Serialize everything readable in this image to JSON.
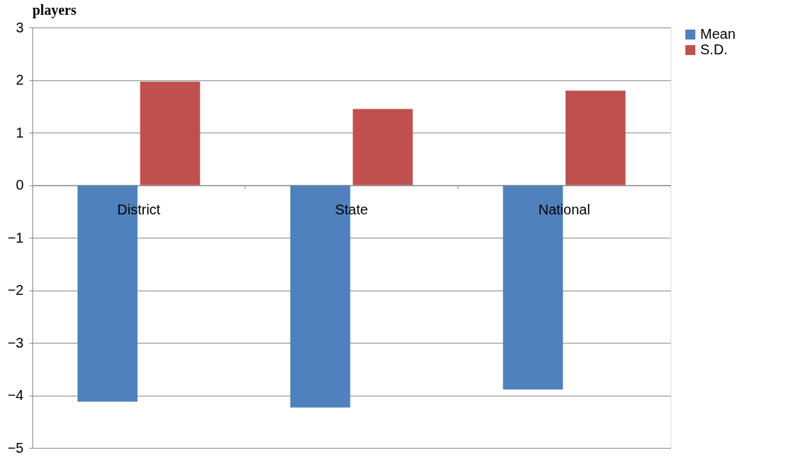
{
  "chart_data": {
    "type": "bar",
    "title": "players",
    "categories": [
      "District",
      "State",
      "National"
    ],
    "series": [
      {
        "name": "Mean",
        "color": "#4f81bd",
        "values": [
          -4.12,
          -4.23,
          -3.89
        ]
      },
      {
        "name": "S.D.",
        "color": "#c0504d",
        "values": [
          1.97,
          1.45,
          1.8
        ]
      }
    ],
    "ylim": [
      -5,
      3
    ],
    "yticks": [
      -5,
      -4,
      -3,
      -2,
      -1,
      0,
      1,
      2,
      3
    ],
    "grid": "y",
    "legend": "right"
  }
}
